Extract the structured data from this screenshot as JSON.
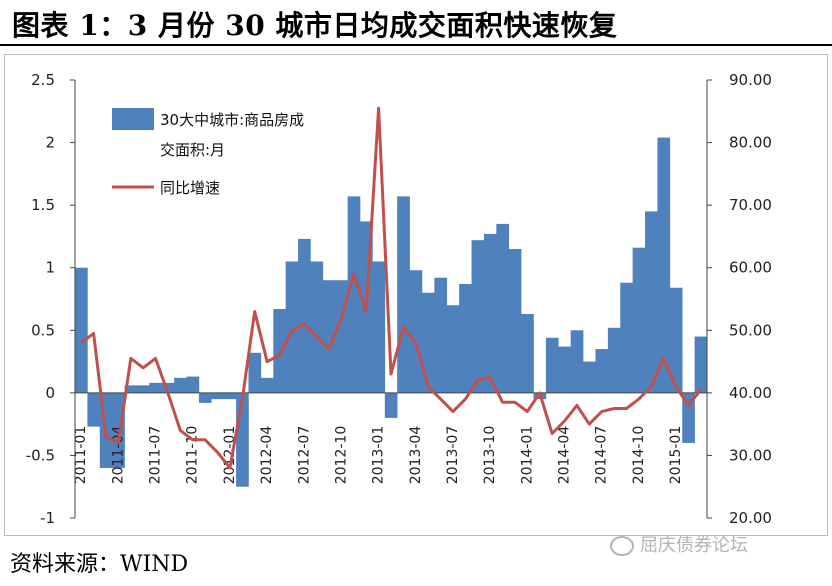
{
  "title": "图表 1：3 月份 30 城市日均成交面积快速恢复",
  "source": "资料来源：WIND",
  "watermark": "屈庆债券论坛",
  "chart_data": {
    "type": "bar+line",
    "x": [
      "2011-01",
      "2011-02",
      "2011-03",
      "2011-04",
      "2011-05",
      "2011-06",
      "2011-07",
      "2011-08",
      "2011-09",
      "2011-10",
      "2011-11",
      "2011-12",
      "2012-01",
      "2012-02",
      "2012-03",
      "2012-04",
      "2012-05",
      "2012-06",
      "2012-07",
      "2012-08",
      "2012-09",
      "2012-10",
      "2012-11",
      "2012-12",
      "2013-01",
      "2013-02",
      "2013-03",
      "2013-04",
      "2013-05",
      "2013-06",
      "2013-07",
      "2013-08",
      "2013-09",
      "2013-10",
      "2013-11",
      "2013-12",
      "2014-01",
      "2014-02",
      "2014-03",
      "2014-04",
      "2014-05",
      "2014-06",
      "2014-07",
      "2014-08",
      "2014-09",
      "2014-10",
      "2014-11",
      "2014-12",
      "2015-01",
      "2015-02",
      "2015-03"
    ],
    "xtick_labels": [
      "2011-01",
      "2011-04",
      "2011-07",
      "2011-10",
      "2012-01",
      "2012-04",
      "2012-07",
      "2012-10",
      "2013-01",
      "2013-04",
      "2013-07",
      "2013-10",
      "2014-01",
      "2014-04",
      "2014-07",
      "2014-10",
      "2015-01"
    ],
    "series": [
      {
        "name": "30大中城市:商品房成交面积:月",
        "axis": "left",
        "type": "bar",
        "color": "#4f81bd",
        "values": [
          1.0,
          -0.27,
          -0.6,
          -0.6,
          0.06,
          0.06,
          0.08,
          0.08,
          0.12,
          0.13,
          -0.08,
          -0.05,
          -0.05,
          -0.75,
          0.32,
          0.12,
          0.67,
          1.05,
          1.23,
          1.05,
          0.9,
          0.9,
          1.57,
          1.37,
          1.05,
          -0.2,
          1.57,
          0.98,
          0.8,
          0.92,
          0.7,
          0.87,
          1.22,
          1.27,
          1.35,
          1.15,
          0.63,
          -0.05,
          0.44,
          0.37,
          0.5,
          0.25,
          0.35,
          0.52,
          0.88,
          1.16,
          1.45,
          2.04,
          0.84,
          -0.4,
          0.45
        ]
      },
      {
        "name": "同比增速",
        "axis": "right",
        "type": "line",
        "color": "#c0504d",
        "values": [
          48.0,
          49.5,
          33.0,
          32.0,
          45.5,
          44.0,
          45.5,
          40.0,
          34.0,
          32.5,
          32.5,
          30.5,
          28.0,
          39.0,
          53.0,
          45.0,
          46.0,
          50.0,
          51.0,
          49.0,
          47.0,
          52.0,
          59.0,
          53.0,
          85.5,
          43.0,
          50.5,
          48.0,
          41.0,
          39.0,
          37.0,
          39.0,
          42.0,
          42.5,
          38.5,
          38.5,
          37.0,
          40.0,
          33.5,
          35.5,
          38.0,
          35.0,
          37.0,
          37.5,
          37.5,
          39.0,
          41.0,
          45.5,
          41.0,
          38.0,
          40.5
        ]
      }
    ],
    "y_left": {
      "min": -1,
      "max": 2.5,
      "ticks": [
        "-1",
        "-0.5",
        "0",
        "0.5",
        "1",
        "1.5",
        "2",
        "2.5"
      ]
    },
    "y_right": {
      "min": 20,
      "max": 90,
      "ticks": [
        "20.00",
        "30.00",
        "40.00",
        "50.00",
        "60.00",
        "70.00",
        "80.00",
        "90.00"
      ]
    },
    "legend": {
      "placement": "top-left",
      "bar_label_line1": "30大中城市:商品房成",
      "bar_label_line2": "交面积:月",
      "line_label": "同比增速"
    },
    "grid": false
  }
}
